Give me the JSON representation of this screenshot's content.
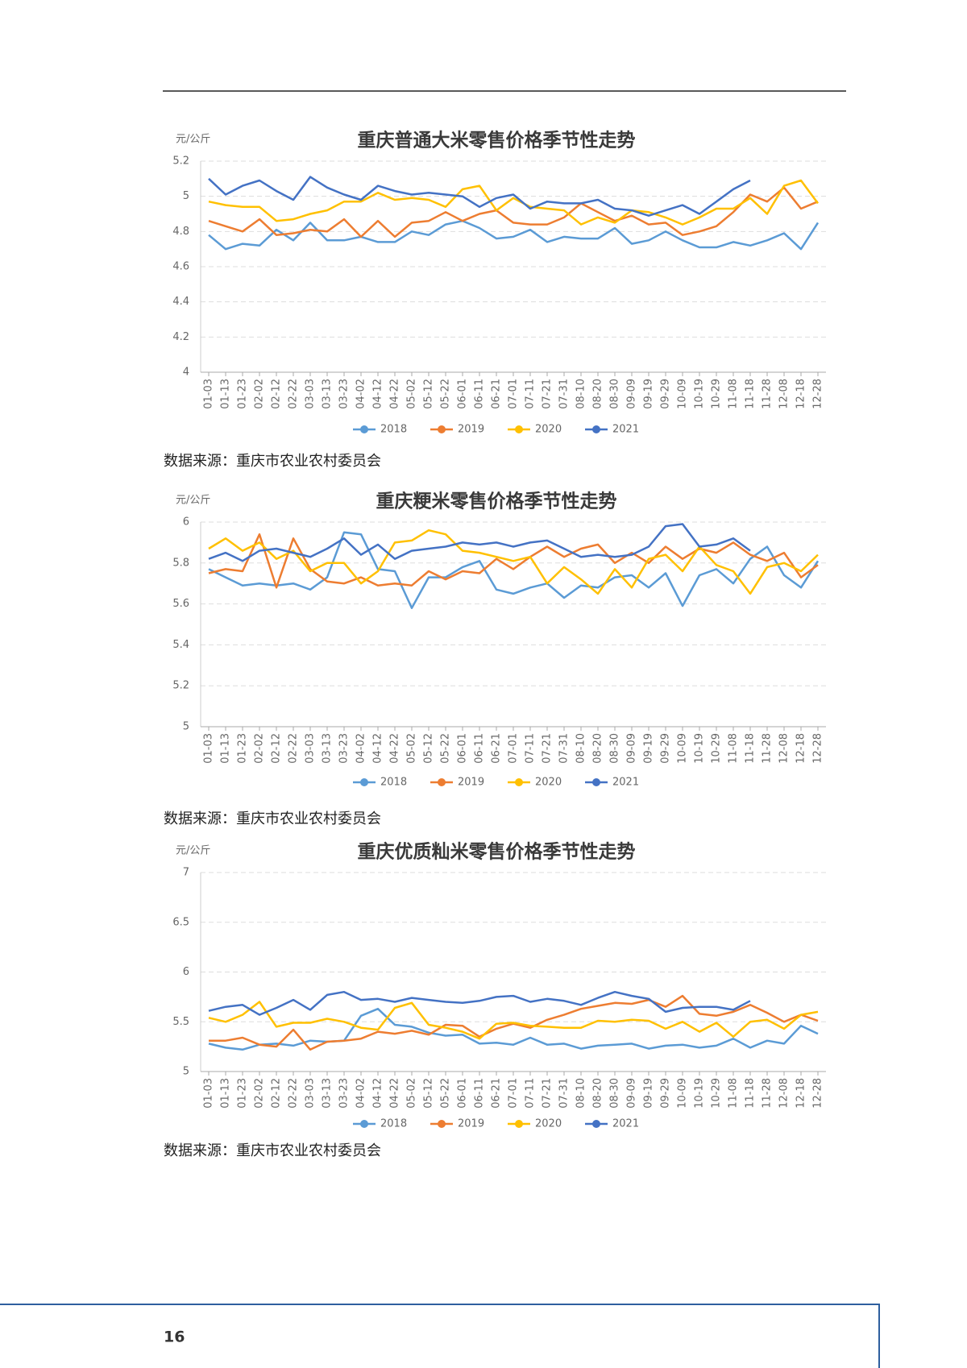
{
  "chart_data": [
    {
      "type": "line",
      "title": "重庆普通大米零售价格季节性走势",
      "y_label": "元/公斤",
      "source": "数据来源：重庆市农业农村委员会",
      "categories": [
        "01-03",
        "01-13",
        "01-23",
        "02-02",
        "02-12",
        "02-22",
        "03-03",
        "03-13",
        "03-23",
        "04-02",
        "04-12",
        "04-22",
        "05-02",
        "05-12",
        "05-22",
        "06-01",
        "06-11",
        "06-21",
        "07-01",
        "07-11",
        "07-21",
        "07-31",
        "08-10",
        "08-20",
        "08-30",
        "09-09",
        "09-19",
        "09-29",
        "10-09",
        "10-19",
        "10-29",
        "11-08",
        "11-18",
        "11-28",
        "12-08",
        "12-18",
        "12-28"
      ],
      "ylim": [
        4,
        5.2
      ],
      "yticks": [
        4,
        4.2,
        4.4,
        4.6,
        4.8,
        5,
        5.2
      ],
      "grid": true,
      "series": [
        {
          "name": "2018",
          "color": "#5b9bd5",
          "values": [
            4.78,
            4.7,
            4.73,
            4.72,
            4.81,
            4.75,
            4.85,
            4.75,
            4.75,
            4.77,
            4.74,
            4.74,
            4.8,
            4.78,
            4.84,
            4.86,
            4.82,
            4.76,
            4.77,
            4.81,
            4.74,
            4.77,
            4.76,
            4.76,
            4.82,
            4.73,
            4.75,
            4.8,
            4.75,
            4.71,
            4.71,
            4.74,
            4.72,
            4.75,
            4.79,
            4.7,
            4.85
          ]
        },
        {
          "name": "2019",
          "color": "#ed7d31",
          "values": [
            4.86,
            4.83,
            4.8,
            4.87,
            4.78,
            4.79,
            4.81,
            4.8,
            4.87,
            4.77,
            4.86,
            4.77,
            4.85,
            4.86,
            4.91,
            4.86,
            4.9,
            4.92,
            4.85,
            4.84,
            4.84,
            4.88,
            4.96,
            4.91,
            4.86,
            4.89,
            4.84,
            4.85,
            4.78,
            4.8,
            4.83,
            4.91,
            5.01,
            4.97,
            5.05,
            4.93,
            4.97
          ]
        },
        {
          "name": "2020",
          "color": "#ffc000",
          "values": [
            4.97,
            4.95,
            4.94,
            4.94,
            4.86,
            4.87,
            4.9,
            4.92,
            4.97,
            4.97,
            5.02,
            4.98,
            4.99,
            4.98,
            4.94,
            5.04,
            5.06,
            4.92,
            4.99,
            4.94,
            4.93,
            4.92,
            4.84,
            4.88,
            4.85,
            4.92,
            4.91,
            4.88,
            4.84,
            4.88,
            4.93,
            4.93,
            4.99,
            4.9,
            5.06,
            5.09,
            4.96
          ]
        },
        {
          "name": "2021",
          "color": "#4472c4",
          "values": [
            5.1,
            5.01,
            5.06,
            5.09,
            5.03,
            4.98,
            5.11,
            5.05,
            5.01,
            4.98,
            5.06,
            5.03,
            5.01,
            5.02,
            5.01,
            5.0,
            4.94,
            4.99,
            5.01,
            4.93,
            4.97,
            4.96,
            4.96,
            4.98,
            4.93,
            4.92,
            4.89,
            4.92,
            4.95,
            4.9,
            4.97,
            5.04,
            5.09,
            null,
            null,
            null,
            null
          ]
        }
      ]
    },
    {
      "type": "line",
      "title": "重庆粳米零售价格季节性走势",
      "y_label": "元/公斤",
      "source": "数据来源：重庆市农业农村委员会",
      "categories": [
        "01-03",
        "01-13",
        "01-23",
        "02-02",
        "02-12",
        "02-22",
        "03-03",
        "03-13",
        "03-23",
        "04-02",
        "04-12",
        "04-22",
        "05-02",
        "05-12",
        "05-22",
        "06-01",
        "06-11",
        "06-21",
        "07-01",
        "07-11",
        "07-21",
        "07-31",
        "08-10",
        "08-20",
        "08-30",
        "09-09",
        "09-19",
        "09-29",
        "10-09",
        "10-19",
        "10-29",
        "11-08",
        "11-18",
        "11-28",
        "12-08",
        "12-18",
        "12-28"
      ],
      "ylim": [
        5,
        6
      ],
      "yticks": [
        5,
        5.2,
        5.4,
        5.6,
        5.8,
        6
      ],
      "grid": true,
      "series": [
        {
          "name": "2018",
          "color": "#5b9bd5",
          "values": [
            5.77,
            5.73,
            5.69,
            5.7,
            5.69,
            5.7,
            5.67,
            5.73,
            5.95,
            5.94,
            5.77,
            5.76,
            5.58,
            5.73,
            5.73,
            5.78,
            5.81,
            5.67,
            5.65,
            5.68,
            5.7,
            5.63,
            5.69,
            5.68,
            5.73,
            5.74,
            5.68,
            5.75,
            5.59,
            5.74,
            5.77,
            5.7,
            5.82,
            5.88,
            5.74,
            5.68,
            5.81
          ]
        },
        {
          "name": "2019",
          "color": "#ed7d31",
          "values": [
            5.75,
            5.77,
            5.76,
            5.94,
            5.68,
            5.92,
            5.77,
            5.71,
            5.7,
            5.73,
            5.69,
            5.7,
            5.69,
            5.76,
            5.72,
            5.76,
            5.75,
            5.82,
            5.77,
            5.83,
            5.88,
            5.83,
            5.87,
            5.89,
            5.8,
            5.85,
            5.8,
            5.88,
            5.82,
            5.87,
            5.85,
            5.9,
            5.84,
            5.81,
            5.85,
            5.73,
            5.79
          ]
        },
        {
          "name": "2020",
          "color": "#ffc000",
          "values": [
            5.87,
            5.92,
            5.86,
            5.9,
            5.82,
            5.86,
            5.76,
            5.8,
            5.8,
            5.7,
            5.76,
            5.9,
            5.91,
            5.96,
            5.94,
            5.86,
            5.85,
            5.83,
            5.81,
            5.83,
            5.7,
            5.78,
            5.72,
            5.65,
            5.77,
            5.68,
            5.82,
            5.84,
            5.76,
            5.88,
            5.79,
            5.76,
            5.65,
            5.78,
            5.8,
            5.76,
            5.84
          ]
        },
        {
          "name": "2021",
          "color": "#4472c4",
          "values": [
            5.82,
            5.85,
            5.81,
            5.86,
            5.87,
            5.85,
            5.83,
            5.87,
            5.92,
            5.84,
            5.89,
            5.82,
            5.86,
            5.87,
            5.88,
            5.9,
            5.89,
            5.9,
            5.88,
            5.9,
            5.91,
            5.87,
            5.83,
            5.84,
            5.83,
            5.84,
            5.88,
            5.98,
            5.99,
            5.88,
            5.89,
            5.92,
            5.86,
            null,
            null,
            null,
            null
          ]
        }
      ]
    },
    {
      "type": "line",
      "title": "重庆优质籼米零售价格季节性走势",
      "y_label": "元/公斤",
      "source": "数据来源：重庆市农业农村委员会",
      "categories": [
        "01-03",
        "01-13",
        "01-23",
        "02-02",
        "02-12",
        "02-22",
        "03-03",
        "03-13",
        "03-23",
        "04-02",
        "04-12",
        "04-22",
        "05-02",
        "05-12",
        "05-22",
        "06-01",
        "06-11",
        "06-21",
        "07-01",
        "07-11",
        "07-21",
        "07-31",
        "08-10",
        "08-20",
        "08-30",
        "09-09",
        "09-19",
        "09-29",
        "10-09",
        "10-19",
        "10-29",
        "11-08",
        "11-18",
        "11-28",
        "12-08",
        "12-18",
        "12-28"
      ],
      "ylim": [
        5,
        7
      ],
      "yticks": [
        5,
        5.5,
        6,
        6.5,
        7
      ],
      "grid": true,
      "series": [
        {
          "name": "2018",
          "color": "#5b9bd5",
          "values": [
            5.28,
            5.24,
            5.22,
            5.27,
            5.28,
            5.26,
            5.31,
            5.3,
            5.31,
            5.56,
            5.63,
            5.47,
            5.45,
            5.39,
            5.36,
            5.37,
            5.28,
            5.29,
            5.27,
            5.34,
            5.27,
            5.28,
            5.23,
            5.26,
            5.27,
            5.28,
            5.23,
            5.26,
            5.27,
            5.24,
            5.26,
            5.33,
            5.24,
            5.31,
            5.28,
            5.46,
            5.38
          ]
        },
        {
          "name": "2019",
          "color": "#ed7d31",
          "values": [
            5.31,
            5.31,
            5.34,
            5.27,
            5.25,
            5.42,
            5.22,
            5.3,
            5.31,
            5.33,
            5.4,
            5.38,
            5.41,
            5.37,
            5.47,
            5.46,
            5.35,
            5.43,
            5.48,
            5.44,
            5.52,
            5.57,
            5.63,
            5.66,
            5.69,
            5.68,
            5.72,
            5.65,
            5.76,
            5.58,
            5.56,
            5.6,
            5.67,
            5.59,
            5.5,
            5.57,
            5.51
          ]
        },
        {
          "name": "2020",
          "color": "#ffc000",
          "values": [
            5.54,
            5.5,
            5.57,
            5.7,
            5.45,
            5.49,
            5.49,
            5.53,
            5.5,
            5.44,
            5.42,
            5.64,
            5.69,
            5.47,
            5.44,
            5.4,
            5.33,
            5.48,
            5.49,
            5.46,
            5.45,
            5.44,
            5.44,
            5.51,
            5.5,
            5.52,
            5.51,
            5.43,
            5.5,
            5.4,
            5.49,
            5.35,
            5.5,
            5.52,
            5.43,
            5.57,
            5.6
          ]
        },
        {
          "name": "2021",
          "color": "#4472c4",
          "values": [
            5.61,
            5.65,
            5.67,
            5.57,
            5.64,
            5.72,
            5.62,
            5.77,
            5.8,
            5.72,
            5.73,
            5.7,
            5.74,
            5.72,
            5.7,
            5.69,
            5.71,
            5.75,
            5.76,
            5.7,
            5.73,
            5.71,
            5.67,
            5.74,
            5.8,
            5.76,
            5.73,
            5.6,
            5.64,
            5.65,
            5.65,
            5.62,
            5.71,
            null,
            null,
            null,
            null
          ]
        }
      ]
    }
  ],
  "page_number": "16"
}
